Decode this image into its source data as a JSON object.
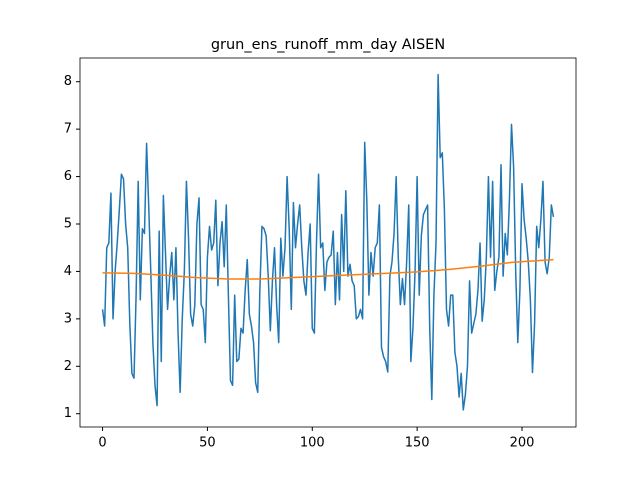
{
  "chart_data": {
    "type": "line",
    "title": "grun_ens_runoff_mm_day AISEN",
    "xlim": [
      -10.75,
      225.75
    ],
    "xticks": [
      0,
      50,
      100,
      150,
      200
    ],
    "ylim": [
      0.72,
      8.5
    ],
    "yticks": [
      1,
      2,
      3,
      4,
      5,
      6,
      7,
      8
    ],
    "series": [
      {
        "color": "#1f77b4",
        "x": [
          0,
          1,
          2,
          3,
          4,
          5,
          6,
          7,
          8,
          9,
          10,
          11,
          12,
          13,
          14,
          15,
          16,
          17,
          18,
          19,
          20,
          21,
          22,
          23,
          24,
          25,
          26,
          27,
          28,
          29,
          30,
          31,
          32,
          33,
          34,
          35,
          36,
          37,
          38,
          39,
          40,
          41,
          42,
          43,
          44,
          45,
          46,
          47,
          48,
          49,
          50,
          51,
          52,
          53,
          54,
          55,
          56,
          57,
          58,
          59,
          60,
          61,
          62,
          63,
          64,
          65,
          66,
          67,
          68,
          69,
          70,
          71,
          72,
          73,
          74,
          75,
          76,
          77,
          78,
          79,
          80,
          81,
          82,
          83,
          84,
          85,
          86,
          87,
          88,
          89,
          90,
          91,
          92,
          93,
          94,
          95,
          96,
          97,
          98,
          99,
          100,
          101,
          102,
          103,
          104,
          105,
          106,
          107,
          108,
          109,
          110,
          111,
          112,
          113,
          114,
          115,
          116,
          117,
          118,
          119,
          120,
          121,
          122,
          123,
          124,
          125,
          126,
          127,
          128,
          129,
          130,
          131,
          132,
          133,
          134,
          135,
          136,
          137,
          138,
          139,
          140,
          141,
          142,
          143,
          144,
          145,
          146,
          147,
          148,
          149,
          150,
          151,
          152,
          153,
          154,
          155,
          156,
          157,
          158,
          159,
          160,
          161,
          162,
          163,
          164,
          165,
          166,
          167,
          168,
          169,
          170,
          171,
          172,
          173,
          174,
          175,
          176,
          177,
          178,
          179,
          180,
          181,
          182,
          183,
          184,
          185,
          186,
          187,
          188,
          189,
          190,
          191,
          192,
          193,
          194,
          195,
          196,
          197,
          198,
          199,
          200,
          201,
          202,
          203,
          204,
          205,
          206,
          207,
          208,
          209,
          210,
          211,
          212,
          213,
          214,
          215
        ],
        "values": [
          3.2,
          2.85,
          4.5,
          4.6,
          5.65,
          3.0,
          4.0,
          4.6,
          5.3,
          6.05,
          5.95,
          5.0,
          4.5,
          2.9,
          1.85,
          1.75,
          3.5,
          5.9,
          3.4,
          4.9,
          4.8,
          6.7,
          5.4,
          4.0,
          2.5,
          1.6,
          1.17,
          4.85,
          2.1,
          5.6,
          4.4,
          3.2,
          3.9,
          4.4,
          3.4,
          4.5,
          2.7,
          1.45,
          3.0,
          4.0,
          5.9,
          4.7,
          3.1,
          2.85,
          3.3,
          5.0,
          5.55,
          3.3,
          3.2,
          2.5,
          4.3,
          4.95,
          4.45,
          4.6,
          5.5,
          3.7,
          4.6,
          5.05,
          4.1,
          5.4,
          3.5,
          1.7,
          1.6,
          3.5,
          2.1,
          2.15,
          2.8,
          2.7,
          3.6,
          4.25,
          3.1,
          2.85,
          2.5,
          1.65,
          1.45,
          3.6,
          4.95,
          4.9,
          4.75,
          3.9,
          2.75,
          3.8,
          4.5,
          3.3,
          2.5,
          4.7,
          3.9,
          4.5,
          6.0,
          4.9,
          3.2,
          5.45,
          4.5,
          5.0,
          5.4,
          4.5,
          3.8,
          3.5,
          4.4,
          5.0,
          2.8,
          2.7,
          4.6,
          6.05,
          4.5,
          4.6,
          3.6,
          4.2,
          4.3,
          4.35,
          4.85,
          3.3,
          4.4,
          3.4,
          5.2,
          4.0,
          5.7,
          3.9,
          4.15,
          3.8,
          3.7,
          3.0,
          3.05,
          3.2,
          3.0,
          6.72,
          5.5,
          3.5,
          4.4,
          3.9,
          4.5,
          4.6,
          5.4,
          2.4,
          2.2,
          2.1,
          1.88,
          3.9,
          4.2,
          4.8,
          6.0,
          4.3,
          3.3,
          3.85,
          3.3,
          4.2,
          5.4,
          2.1,
          2.8,
          4.0,
          6.0,
          3.5,
          4.75,
          5.2,
          5.3,
          5.4,
          2.8,
          1.3,
          3.5,
          4.6,
          8.15,
          6.4,
          6.5,
          5.3,
          3.2,
          2.85,
          3.5,
          3.5,
          2.3,
          2.0,
          1.35,
          1.85,
          1.08,
          1.4,
          2.0,
          3.8,
          2.7,
          2.9,
          3.1,
          3.6,
          4.6,
          2.95,
          3.4,
          4.3,
          6.0,
          4.3,
          5.9,
          3.6,
          4.0,
          4.3,
          6.25,
          3.9,
          4.8,
          4.35,
          5.5,
          7.1,
          6.2,
          4.0,
          2.5,
          3.6,
          5.85,
          5.1,
          4.7,
          4.2,
          3.4,
          1.87,
          2.9,
          4.95,
          4.5,
          5.1,
          5.9,
          4.2,
          3.95,
          4.3,
          5.4,
          5.15
        ]
      },
      {
        "color": "#ff7f0e",
        "x": [
          0,
          15,
          30,
          45,
          60,
          75,
          90,
          105,
          120,
          135,
          150,
          165,
          180,
          195,
          215
        ],
        "values": [
          3.97,
          3.96,
          3.92,
          3.87,
          3.84,
          3.84,
          3.87,
          3.9,
          3.93,
          3.96,
          3.99,
          4.04,
          4.11,
          4.19,
          4.25
        ]
      }
    ]
  }
}
